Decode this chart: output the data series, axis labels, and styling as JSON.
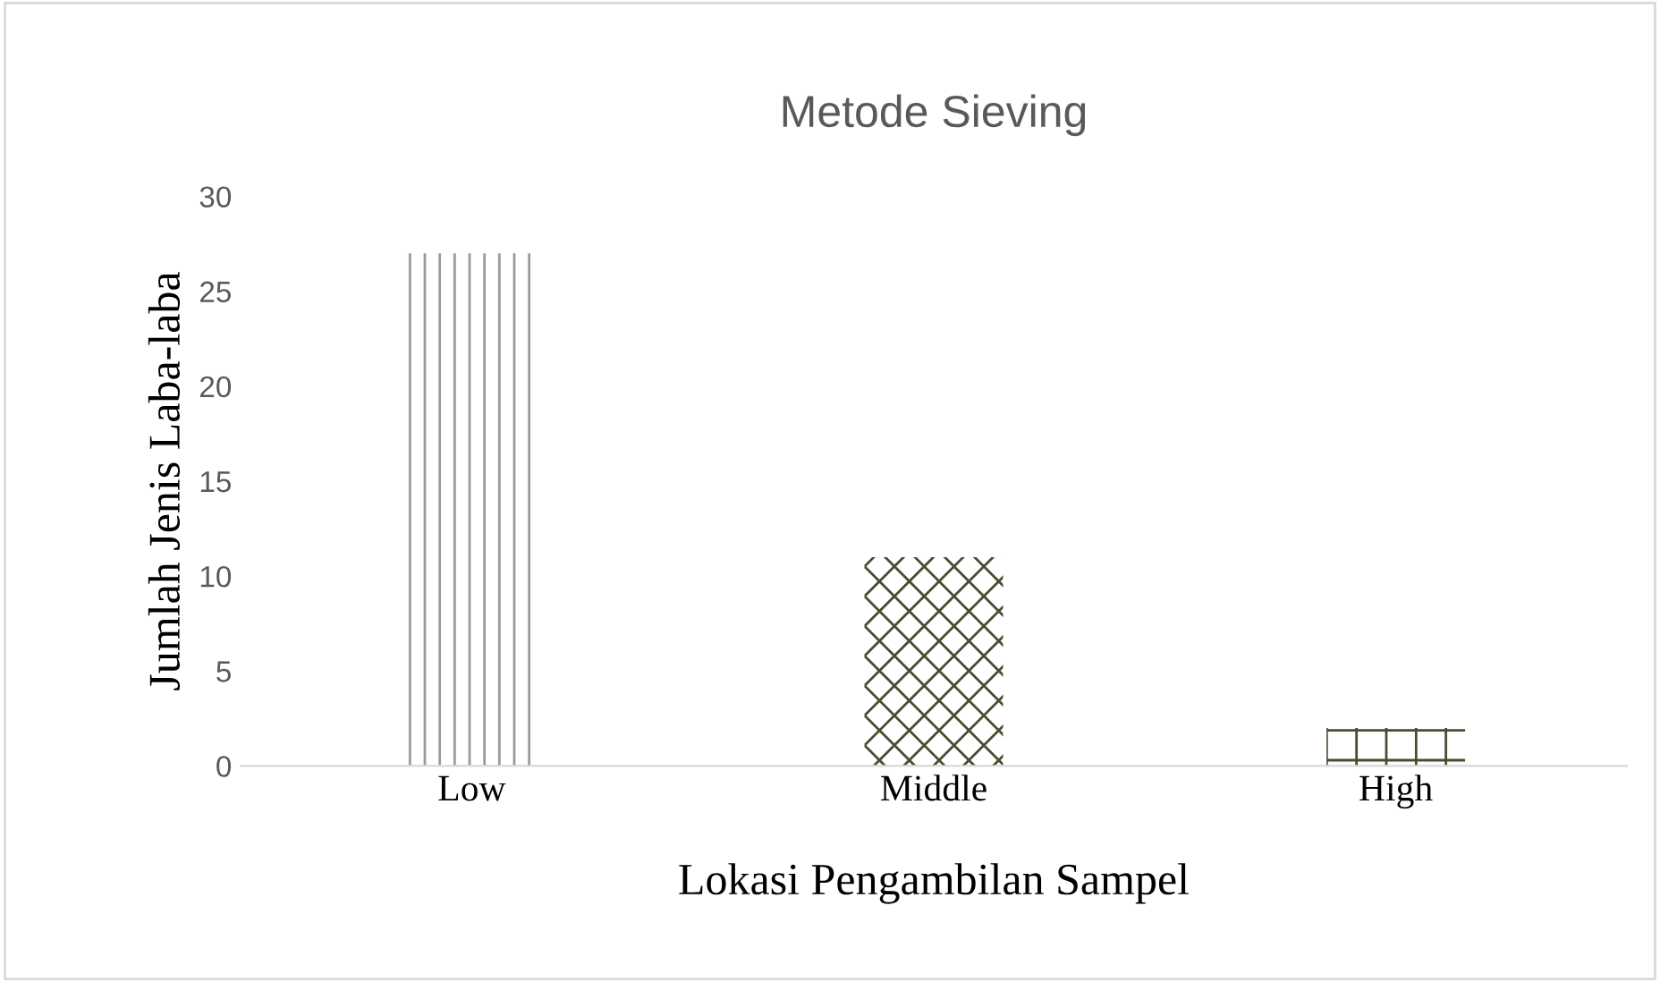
{
  "chart_data": {
    "type": "bar",
    "title": "Metode Sieving",
    "xlabel": "Lokasi Pengambilan Sampel",
    "ylabel": "Jumlah Jenis Laba-laba",
    "categories": [
      "Low",
      "Middle",
      "High"
    ],
    "values": [
      27,
      11,
      2
    ],
    "colors": [
      "#9a9a9a",
      "#4b4b32",
      "#4b4b32"
    ],
    "ylim": [
      0,
      30
    ],
    "yticks": [
      0,
      5,
      10,
      15,
      20,
      25,
      30
    ],
    "grid": false,
    "legend": false
  }
}
